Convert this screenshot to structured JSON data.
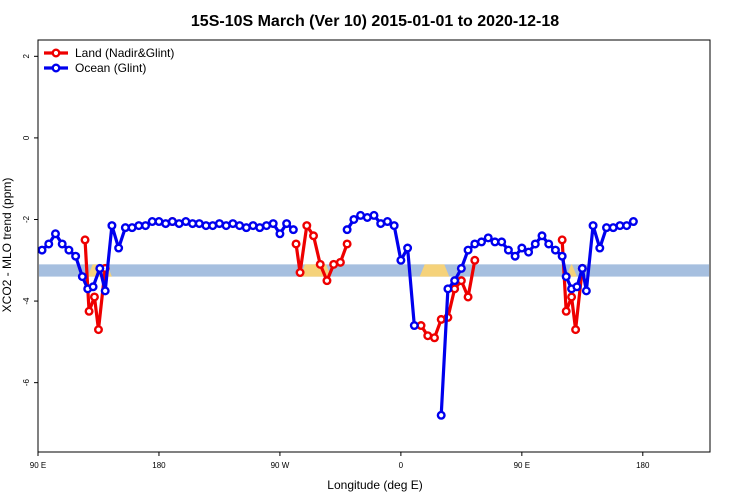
{
  "chart_data": {
    "type": "line",
    "title": "15S-10S March (Ver 10)   2015-01-01 to 2020-12-18",
    "xlabel": "Longitude (deg E)",
    "ylabel": "XCO2 - MLO trend (ppm)",
    "xlim": [
      90,
      590
    ],
    "ylim": [
      -7.7,
      2.4
    ],
    "x_ticks": [
      {
        "value": 90,
        "label": "90 E"
      },
      {
        "value": 180,
        "label": "180"
      },
      {
        "value": 270,
        "label": "90 W"
      },
      {
        "value": 360,
        "label": "0"
      },
      {
        "value": 450,
        "label": "90 E"
      },
      {
        "value": 540,
        "label": "180"
      }
    ],
    "y_ticks": [
      {
        "value": 2,
        "label": "2"
      },
      {
        "value": 0,
        "label": "0"
      },
      {
        "value": -2,
        "label": "-2"
      },
      {
        "value": -4,
        "label": "-4"
      },
      {
        "value": -6,
        "label": "-6"
      }
    ],
    "legend": {
      "placement": "top-left",
      "entries": [
        {
          "label": "Land (Nadir&Glint)",
          "color": "#ee0000"
        },
        {
          "label": "Ocean (Glint)",
          "color": "#0000ee"
        }
      ]
    },
    "band": {
      "y_top": -3.1,
      "y_bottom": -3.4,
      "color": "#a6bfdf",
      "highlight_color": "#f5d27a",
      "highlights": [
        [
          127,
          145
        ],
        [
          285,
          308
        ],
        [
          374,
          396
        ],
        [
          483,
          491
        ]
      ]
    },
    "series": [
      {
        "name": "Land (Nadir&Glint)",
        "color": "#ee0000",
        "segments": [
          [
            [
              125,
              -2.5
            ],
            [
              128,
              -4.25
            ],
            [
              132,
              -3.9
            ],
            [
              135,
              -4.7
            ],
            [
              140,
              -3.2
            ]
          ],
          [
            [
              190,
              -2.05
            ]
          ],
          [
            [
              282,
              -2.6
            ],
            [
              285,
              -3.3
            ],
            [
              290,
              -2.15
            ],
            [
              295,
              -2.4
            ],
            [
              300,
              -3.1
            ],
            [
              305,
              -3.5
            ],
            [
              310,
              -3.1
            ],
            [
              315,
              -3.05
            ],
            [
              320,
              -2.6
            ]
          ],
          [
            [
              375,
              -4.6
            ],
            [
              380,
              -4.85
            ],
            [
              385,
              -4.9
            ],
            [
              390,
              -4.45
            ],
            [
              395,
              -4.4
            ],
            [
              400,
              -3.7
            ],
            [
              405,
              -3.5
            ],
            [
              410,
              -3.9
            ],
            [
              415,
              -3.0
            ]
          ],
          [
            [
              480,
              -2.5
            ],
            [
              483,
              -4.25
            ],
            [
              487,
              -3.9
            ],
            [
              490,
              -4.7
            ],
            [
              495,
              -3.2
            ]
          ]
        ]
      },
      {
        "name": "Ocean (Glint)",
        "color": "#0000ee",
        "segments": [
          [
            [
              93,
              -2.75
            ],
            [
              98,
              -2.6
            ],
            [
              103,
              -2.35
            ],
            [
              108,
              -2.6
            ],
            [
              113,
              -2.75
            ],
            [
              118,
              -2.9
            ],
            [
              123,
              -3.4
            ],
            [
              127,
              -3.7
            ],
            [
              131,
              -3.65
            ],
            [
              136,
              -3.2
            ],
            [
              140,
              -3.75
            ],
            [
              145,
              -2.15
            ],
            [
              150,
              -2.7
            ],
            [
              155,
              -2.2
            ],
            [
              160,
              -2.2
            ],
            [
              165,
              -2.15
            ],
            [
              170,
              -2.15
            ],
            [
              175,
              -2.05
            ],
            [
              180,
              -2.05
            ],
            [
              185,
              -2.1
            ],
            [
              190,
              -2.05
            ],
            [
              195,
              -2.1
            ],
            [
              200,
              -2.05
            ],
            [
              205,
              -2.1
            ],
            [
              210,
              -2.1
            ],
            [
              215,
              -2.15
            ],
            [
              220,
              -2.15
            ],
            [
              225,
              -2.1
            ],
            [
              230,
              -2.15
            ],
            [
              235,
              -2.1
            ],
            [
              240,
              -2.15
            ],
            [
              245,
              -2.2
            ],
            [
              250,
              -2.15
            ],
            [
              255,
              -2.2
            ],
            [
              260,
              -2.15
            ],
            [
              265,
              -2.1
            ],
            [
              270,
              -2.35
            ],
            [
              275,
              -2.1
            ],
            [
              280,
              -2.25
            ]
          ],
          [
            [
              320,
              -2.25
            ],
            [
              325,
              -2.0
            ],
            [
              330,
              -1.9
            ],
            [
              335,
              -1.95
            ],
            [
              340,
              -1.9
            ],
            [
              345,
              -2.1
            ],
            [
              350,
              -2.05
            ],
            [
              355,
              -2.15
            ],
            [
              360,
              -3.0
            ],
            [
              365,
              -2.7
            ],
            [
              370,
              -4.6
            ]
          ],
          [
            [
              390,
              -6.8
            ],
            [
              395,
              -3.7
            ],
            [
              400,
              -3.5
            ],
            [
              405,
              -3.2
            ],
            [
              410,
              -2.75
            ],
            [
              415,
              -2.6
            ],
            [
              420,
              -2.55
            ],
            [
              425,
              -2.45
            ],
            [
              430,
              -2.55
            ],
            [
              435,
              -2.55
            ],
            [
              440,
              -2.75
            ],
            [
              445,
              -2.9
            ],
            [
              450,
              -2.7
            ],
            [
              455,
              -2.8
            ],
            [
              460,
              -2.6
            ],
            [
              465,
              -2.4
            ],
            [
              470,
              -2.6
            ],
            [
              475,
              -2.75
            ],
            [
              480,
              -2.9
            ],
            [
              483,
              -3.4
            ],
            [
              487,
              -3.7
            ],
            [
              491,
              -3.65
            ],
            [
              495,
              -3.2
            ],
            [
              498,
              -3.75
            ],
            [
              503,
              -2.15
            ],
            [
              508,
              -2.7
            ],
            [
              513,
              -2.2
            ],
            [
              518,
              -2.2
            ],
            [
              523,
              -2.15
            ],
            [
              528,
              -2.15
            ],
            [
              533,
              -2.05
            ]
          ]
        ]
      }
    ]
  }
}
